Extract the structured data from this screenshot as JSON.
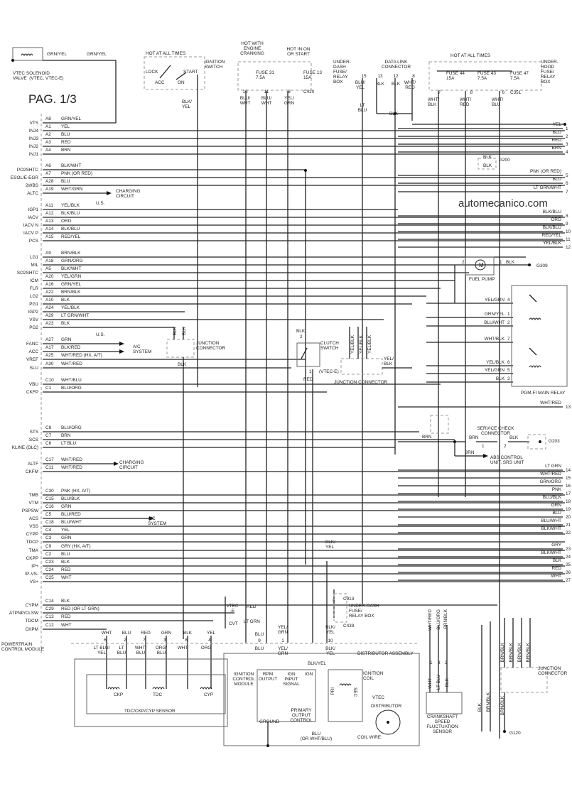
{
  "page_label": "PAG. 1/3",
  "watermark": "automecanico.com",
  "vtec_solenoid": {
    "label": "VTEC SOLENOID\nVALVE  (VTEC, VTEC-E)",
    "wire1": "GRN/YEL",
    "wire2": "GRN/YEL"
  },
  "ignition_switch": {
    "hot": "HOT AT ALL TIMES",
    "title": "IGNITION\nSWITCH",
    "lock": "LOCK",
    "acc": "ACC",
    "on": "ON",
    "start": "START",
    "out_wire": "BLK/\nYEL"
  },
  "underdash_fuse_box": {
    "hot1": "HOT WITH\nENGINE\nCRANKING",
    "hot2": "HOT IN ON\nOR START",
    "fuse31": "FUSE 31\n7.5A",
    "fuse13": "FUSE 13\n15A",
    "title": "UNDER-\nDASH\nFUSE/\nRELAY\nBOX",
    "connector": "C420",
    "pins": [
      {
        "pin": "10",
        "wire": "BLU/\nWHT"
      },
      {
        "pin": "11",
        "wire": "BLU/\nWHT"
      },
      {
        "pin": "8",
        "wire": "YEL/\nGRN"
      }
    ]
  },
  "data_link_connector": {
    "title": "DATA LINK\nCONNECTOR",
    "pins": [
      {
        "pin": "15",
        "wire": "BLU/\nYEL"
      },
      {
        "pin": "13",
        "wire": "BLK"
      },
      {
        "pin": "12",
        "wire": "BLK"
      },
      {
        "pin": "8",
        "wire": "WHT/\nRED"
      }
    ],
    "lt_blu": "LT\nBLU",
    "blk": "BLK"
  },
  "underhood_fuse_box": {
    "hot": "HOT AT ALL TIMES",
    "fuse44": "FUSE 44\n15A",
    "fuse43": "FUSE 43\n7.5A",
    "fuse47": "FUSE 47\n7.5A",
    "title": "UNDER-\nHOOD\nFUSE/\nRELAY\nBOX",
    "connector": "C351",
    "pins": [
      {
        "pin": "7",
        "wire": "WHT/\nBLK"
      },
      {
        "pin": "8",
        "wire": "WHT/\nRED"
      },
      {
        "pin": "6",
        "wire": "WHT/\nBLU"
      }
    ]
  },
  "g200": {
    "blk1": "BLK",
    "blk2": "BLK",
    "label": "G200"
  },
  "pcm": {
    "title": "POWERTRAIN\nCONTROL MODULE",
    "pins": [
      {
        "name": "VTS",
        "pin": "A8",
        "wire": "GRN/YEL"
      },
      {
        "name": "INJ4",
        "pin": "A1",
        "wire": "YEL"
      },
      {
        "name": "INJ3",
        "pin": "A2",
        "wire": "BLU"
      },
      {
        "name": "INJ2",
        "pin": "A3",
        "wire": "RED"
      },
      {
        "name": "INJ1",
        "pin": "A4",
        "wire": "BRN"
      },
      {
        "name": "PO2SHTC",
        "pin": "A6",
        "wire": "BLK/WHT"
      },
      {
        "name": "ESOL/E-EGR",
        "pin": "A7",
        "wire": "PNK (OR RED)"
      },
      {
        "name": "2WBS",
        "pin": "A28",
        "wire": "BLU"
      },
      {
        "name": "ALTC",
        "pin": "A19",
        "wire": "WHT/GRN"
      },
      {
        "name": "IGP1",
        "pin": "A11",
        "wire": "YEL/BLK"
      },
      {
        "name": "IACV",
        "pin": "A12",
        "wire": "BLK/BLU"
      },
      {
        "name": "IACV N",
        "pin": "A13",
        "wire": "ORG"
      },
      {
        "name": "IACV P",
        "pin": "A14",
        "wire": "BLK/BLU"
      },
      {
        "name": "PCS",
        "pin": "A15",
        "wire": "RED/YEL"
      },
      {
        "name": "LG1",
        "pin": "A9",
        "wire": "BRN/BLK"
      },
      {
        "name": "MIL",
        "pin": "A18",
        "wire": "GRN/ORG"
      },
      {
        "name": "SO2SHTC",
        "pin": "A5",
        "wire": "BLK/WHT"
      },
      {
        "name": "ICM",
        "pin": "A20",
        "wire": "YEL/GRN"
      },
      {
        "name": "FLR",
        "pin": "A16",
        "wire": "GRN/YEL"
      },
      {
        "name": "LG2",
        "pin": "A22",
        "wire": "BRN/BLK"
      },
      {
        "name": "PG1",
        "pin": "A10",
        "wire": "BLK"
      },
      {
        "name": "IGP2",
        "pin": "A24",
        "wire": "YEL/BLK"
      },
      {
        "name": "VSV",
        "pin": "A29",
        "wire": "LT GRN/WHT"
      },
      {
        "name": "PG2",
        "pin": "A23",
        "wire": "BLK"
      },
      {
        "name": "FANC",
        "pin": "A27",
        "wire": "GRN"
      },
      {
        "name": "ACC",
        "pin": "A17",
        "wire": "BLK/RED"
      },
      {
        "name": "VREF",
        "pin": "A25",
        "wire": "WHT/RED (HX, A/T)"
      },
      {
        "name": "SLU",
        "pin": "A30",
        "wire": "WHT/RED"
      },
      {
        "name": "VBU",
        "pin": "C10",
        "wire": "WHT/BLU"
      },
      {
        "name": "CKFP",
        "pin": "C1",
        "wire": "BLU/ORG"
      },
      {
        "name": "STS",
        "pin": "C8",
        "wire": "BLU/ORG"
      },
      {
        "name": "SCS",
        "pin": "C7",
        "wire": "BRN"
      },
      {
        "name": "KLINE (DLC)",
        "pin": "C6",
        "wire": "LT BLU"
      },
      {
        "name": "ALTF",
        "pin": "C17",
        "wire": "WHT/RED"
      },
      {
        "name": "CKFM",
        "pin": "C11",
        "wire": "WHT/RED"
      },
      {
        "name": "TMB",
        "pin": "C30",
        "wire": "PNK (HX, A/T)"
      },
      {
        "name": "VTM",
        "pin": "C15",
        "wire": "BLU/BLK"
      },
      {
        "name": "PSPSW",
        "pin": "C16",
        "wire": "GRN"
      },
      {
        "name": "ACS",
        "pin": "C5",
        "wire": "BLU/RED"
      },
      {
        "name": "VSS",
        "pin": "C18",
        "wire": "BLU/WHT"
      },
      {
        "name": "CYPP",
        "pin": "C4",
        "wire": "YEL"
      },
      {
        "name": "TDCP",
        "pin": "C3",
        "wire": "GRN"
      },
      {
        "name": "TMA",
        "pin": "C9",
        "wire": "GRY (HX, A/T)"
      },
      {
        "name": "CKPP",
        "pin": "C2",
        "wire": "BLU"
      },
      {
        "name": "IP+",
        "pin": "C23",
        "wire": "BLK"
      },
      {
        "name": "IP-VS-",
        "pin": "C24",
        "wire": "RED"
      },
      {
        "name": "VS+",
        "pin": "C25",
        "wire": "WHT"
      },
      {
        "name": "CYPM",
        "pin": "C14",
        "wire": "BLK"
      },
      {
        "name": "ATPNP/CLSW",
        "pin": "C29",
        "wire": "RED (OR LT GRN)"
      },
      {
        "name": "TDCM",
        "pin": "C13",
        "wire": "RED"
      },
      {
        "name": "CKPM",
        "pin": "C12",
        "wire": "WHT"
      }
    ]
  },
  "destinations": {
    "charging_circuit": "CHARGING\nCIRCUIT",
    "ac_system": "A/C\nSYSTEM",
    "us": "U.S."
  },
  "continuation_wires": [
    {
      "num": "1",
      "wire": "YEL"
    },
    {
      "num": "2",
      "wire": "BLU"
    },
    {
      "num": "3",
      "wire": "RED"
    },
    {
      "num": "4",
      "wire": "BRN"
    },
    {
      "num": "5",
      "wire": "PNK (OR RED)"
    },
    {
      "num": "6",
      "wire": "BLU"
    },
    {
      "num": "7",
      "wire": "LT GRN/WHT"
    },
    {
      "num": "8",
      "wire": "BLK/BLU"
    },
    {
      "num": "9",
      "wire": "ORG"
    },
    {
      "num": "10",
      "wire": "BLK/BLU"
    },
    {
      "num": "11",
      "wire": "RED/YEL"
    },
    {
      "num": "12",
      "wire": "YEL/BLK"
    },
    {
      "num": "13",
      "wire": "WHT/RED"
    },
    {
      "num": "14",
      "wire": "LT GRN"
    },
    {
      "num": "15",
      "wire": "WHT/RED"
    },
    {
      "num": "16",
      "wire": "GRN/ORG"
    },
    {
      "num": "17",
      "wire": "PNK"
    },
    {
      "num": "18",
      "wire": "BLU/BLK"
    },
    {
      "num": "19",
      "wire": "GRN"
    },
    {
      "num": "20",
      "wire": "BLU"
    },
    {
      "num": "21",
      "wire": "BLU/WHT"
    },
    {
      "num": "22",
      "wire": "BLK/WHT"
    },
    {
      "num": "23",
      "wire": "GRY"
    },
    {
      "num": "24",
      "wire": "BLK/WHT"
    },
    {
      "num": "25",
      "wire": "BLK"
    },
    {
      "num": "26",
      "wire": "RED"
    },
    {
      "num": "27",
      "wire": "WHT"
    }
  ],
  "fuel_pump": {
    "label": "FUEL PUMP",
    "motor": "M",
    "pin2": "2",
    "pin1": "1",
    "wire": "BLK",
    "ground": "G309"
  },
  "main_relay": {
    "title": "PGM-FI MAIN RELAY",
    "pins": [
      {
        "pin": "4",
        "wire": "YEL/GRN"
      },
      {
        "pin": "1",
        "wire": "GRN/YEL"
      },
      {
        "pin": "2",
        "wire": "BLU/WHT"
      },
      {
        "pin": "7",
        "wire": "WHT/BLK"
      },
      {
        "pin": "6",
        "wire": "YEL/BLK"
      },
      {
        "pin": "5",
        "wire": "YEL/GRN"
      },
      {
        "pin": "3",
        "wire": "BLK"
      }
    ]
  },
  "junction_connector_1": {
    "title": "JUNCTION\nCONNECTOR",
    "in1": "BLK",
    "in2": "BLK",
    "out": "BLK"
  },
  "clutch_switch": {
    "title": "CLUTCH\nSWITCH",
    "pin2": "2",
    "pin1": "1",
    "wire_in": "BLK",
    "wire_out": "RED",
    "note": "(VTEC-E)"
  },
  "junction_connector_2": {
    "title": "JUNCTION CONNECTOR",
    "wires": [
      "YEL/BLK",
      "YEL/BLK",
      "YEL/BLK"
    ],
    "out": "YEL/\nBLK"
  },
  "service_check": {
    "title": "SERVICE CHECK\nCONNECTOR",
    "wire_in": "BRN",
    "wire1": "BRN",
    "pin1": "1",
    "pin2": "2",
    "wire2": "BLK",
    "ground": "G203",
    "branch": "BRN",
    "dest": "ABS CONTROL\nUNIT, SRS UNIT"
  },
  "blk_yel_mid": "BLK/\nYEL",
  "cvt_block": {
    "vtec_e": "VTEC\n-E",
    "red": "RED",
    "cvt": "CVT",
    "lt_grn": "LT GRN"
  },
  "underdash_fuse_box_2": {
    "c913": "C913",
    "pin5": "5",
    "title": "UNDER-DASH\nFUSE/\nRELAY BOX",
    "c439": "C439"
  },
  "sensor_connector": {
    "pins": [
      {
        "top": "WHT",
        "pin": "6",
        "bottom": "LT BLU/\nYEL"
      },
      {
        "top": "BLU",
        "pin": "2",
        "bottom": "LT\nBLU"
      },
      {
        "top": "RED",
        "pin": "7",
        "bottom": "WHT/\nBLU"
      },
      {
        "top": "GRN",
        "pin": "3",
        "bottom": "ORG/\nBLU"
      },
      {
        "top": "BLK",
        "pin": "8",
        "bottom": "WHT"
      },
      {
        "top": "YEL",
        "pin": "4",
        "bottom": "ORG"
      }
    ]
  },
  "tdc_sensor": {
    "title": "TDC/CKP/CYP SENSOR",
    "ckp": "CKP",
    "tdc": "TDC",
    "cyp": "CYP"
  },
  "distributor": {
    "title": "DISTRIBUTOR ASSEMBLY",
    "pins": [
      {
        "top": "BLU",
        "pin": "9",
        "bottom": "BLU"
      },
      {
        "top": "YEL/\nGRN",
        "pin": "1",
        "bottom": "YEL/\nGRN"
      },
      {
        "top": "BLK/\nYEL",
        "pin": "10",
        "bottom": "BLK/\nYEL"
      }
    ],
    "icm": "IGNITION\nCONTROL\nMODULE",
    "rpm": "RPM\nOUTPUT",
    "ign_input": "IGN\nINPUT\nSIGNAL",
    "ign": "IGN",
    "ground": "GROUND",
    "primary": "PRIMARY\nOUTPUT\nCONTROL",
    "blk_yel": "BLK/YEL",
    "coil": "IGNITION\nCOIL",
    "pri": "PRI",
    "sec": "SEC",
    "vtec": "VTEC",
    "dist": "DISTRIBUTOR",
    "blu": "BLU\n(OR WHT/BLU)",
    "coil_wire": "COIL WIRE"
  },
  "crank_sensor": {
    "title": "CRANKSHAFT\nSPEED\nFLUCTUATION\nSENSOR",
    "top": [
      "WHT/RED",
      "BLU/ORG",
      "BRN/BLK"
    ],
    "pins": [
      "1",
      "3",
      "2"
    ],
    "bottom": [
      "WHT",
      "LT BLU",
      "BLK"
    ]
  },
  "junction_connector_3": {
    "title": "JUNCTION\nCONNECTOR",
    "wires": [
      "BRN/BLK",
      "BRN/BLK",
      "BRN/BLK",
      "BRN/BLK"
    ],
    "out": "BRN/BLK",
    "blk": "BLK",
    "brn_blk": "BRN/BLK",
    "ground": "G120"
  }
}
